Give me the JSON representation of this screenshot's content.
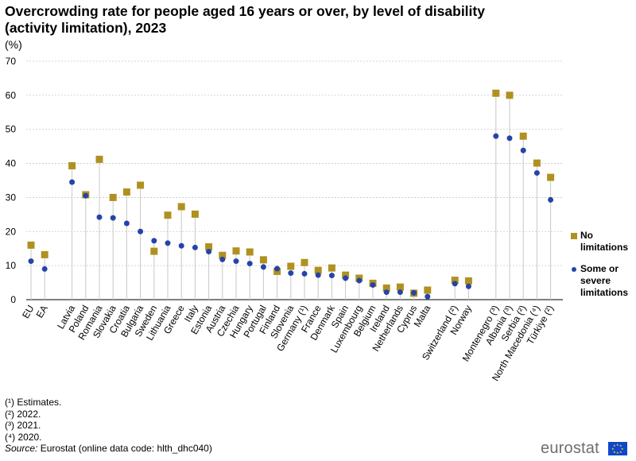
{
  "chart_data": {
    "type": "scatter",
    "title": "Overcrowding rate for people aged 16 years or over, by level of disability (activity limitation), 2023",
    "ylabel": "(%)",
    "ylim": [
      0,
      70
    ],
    "yticks": [
      0,
      10,
      20,
      30,
      40,
      50,
      60,
      70
    ],
    "grid": true,
    "legend_position": "right",
    "categories": [
      "EU",
      "EA",
      "",
      "Latvia",
      "Poland",
      "Romania",
      "Slovakia",
      "Croatia",
      "Bulgaria",
      "Sweden",
      "Lithuania",
      "Greece",
      "Italy",
      "Estonia",
      "Austria",
      "Czechia",
      "Hungary",
      "Portugal",
      "Finland",
      "Slovenia",
      "Germany (¹)",
      "France",
      "Denmark",
      "Spain",
      "Luxembourg",
      "Belgium",
      "Ireland",
      "Netherlands",
      "Cyprus",
      "Malta",
      "",
      "Switzerland (²)",
      "Norway",
      "",
      "Montenegro (³)",
      "Albania (³)",
      "Serbia (²)",
      "North Macedonia (⁴)",
      "Türkiye (²)"
    ],
    "series": [
      {
        "name": "No limitations",
        "color": "#b09120",
        "marker": "square",
        "values": [
          16.0,
          13.2,
          null,
          39.3,
          30.8,
          41.2,
          30.0,
          31.6,
          33.6,
          14.2,
          24.8,
          27.3,
          25.1,
          15.5,
          13.0,
          14.3,
          14.0,
          11.7,
          8.3,
          9.8,
          10.9,
          8.6,
          9.3,
          7.2,
          6.3,
          4.8,
          3.4,
          3.7,
          1.9,
          2.8,
          null,
          5.7,
          5.5,
          null,
          60.6,
          60.0,
          48.0,
          40.1,
          35.9
        ]
      },
      {
        "name": "Some or severe limitations",
        "color": "#2644a7",
        "marker": "circle",
        "values": [
          11.3,
          9.0,
          null,
          34.5,
          30.5,
          24.2,
          24.0,
          22.4,
          20.0,
          17.3,
          16.6,
          15.8,
          15.3,
          14.1,
          11.8,
          11.3,
          10.6,
          9.6,
          9.1,
          7.8,
          7.6,
          7.2,
          7.1,
          6.3,
          5.6,
          4.3,
          2.2,
          2.2,
          2.0,
          0.9,
          null,
          4.7,
          3.9,
          null,
          48.0,
          47.4,
          43.8,
          37.2,
          29.3
        ]
      }
    ]
  },
  "header": {
    "title": "Overcrowding rate for people aged 16 years or over, by level of disability (activity limitation), 2023",
    "unit": "(%)"
  },
  "legend": {
    "no_limitations": "No limitations",
    "some_limitations": "Some or severe limitations"
  },
  "footnotes": {
    "note1": "(¹) Estimates.",
    "note2": "(²) 2022.",
    "note3": "(³) 2021.",
    "note4": "(⁴) 2020.",
    "source_label": "Source:",
    "source_text": " Eurostat (online data code: hlth_dhc040)"
  },
  "branding": {
    "logo_text": "eurostat"
  }
}
